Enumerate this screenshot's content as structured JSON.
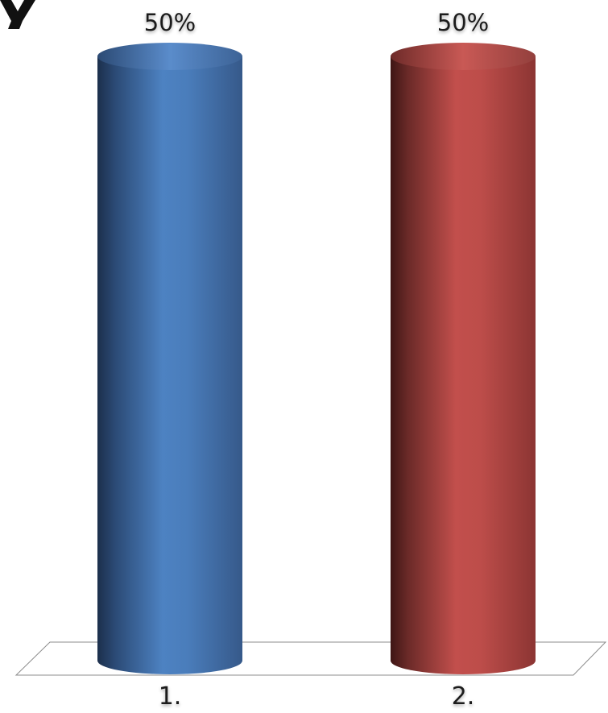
{
  "chart_data": {
    "type": "bar",
    "style": "3d-cylinder",
    "categories": [
      "1.",
      "2."
    ],
    "series": [
      {
        "values": [
          50,
          50
        ],
        "labels": [
          "50%",
          "50%"
        ],
        "colors": [
          "#4a7ebb",
          "#c0504d"
        ]
      }
    ],
    "ylim": [
      0,
      50
    ],
    "grid": false,
    "legend": "none"
  }
}
